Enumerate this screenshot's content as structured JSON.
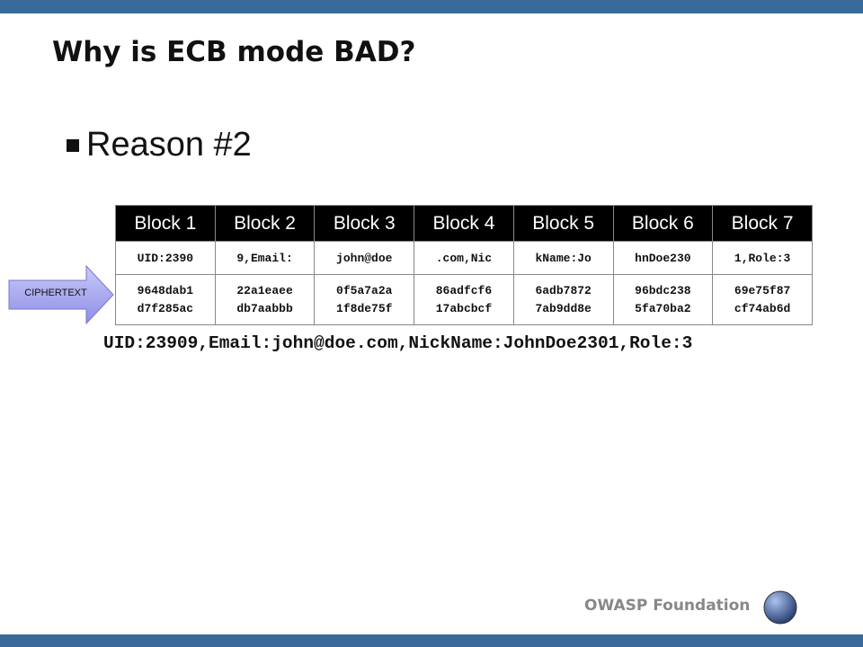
{
  "title": "Why is ECB mode BAD?",
  "bullet": "Reason #2",
  "arrow_label": "CIPHERTEXT",
  "table": {
    "headers": [
      "Block 1",
      "Block 2",
      "Block 3",
      "Block 4",
      "Block 5",
      "Block 6",
      "Block 7"
    ],
    "plaintext": [
      "UID:2390",
      "9,Email:",
      "john@doe",
      ".com,Nic",
      "kName:Jo",
      "hnDoe230",
      "1,Role:3"
    ],
    "ciphertext": [
      [
        "9648dab1",
        "d7f285ac"
      ],
      [
        "22a1eaee",
        "db7aabbb"
      ],
      [
        "0f5a7a2a",
        "1f8de75f"
      ],
      [
        "86adfcf6",
        "17abcbcf"
      ],
      [
        "6adb7872",
        "7ab9dd8e"
      ],
      [
        "96bdc238",
        "5fa70ba2"
      ],
      [
        "69e75f87",
        "cf74ab6d"
      ]
    ]
  },
  "plaintext": "UID:23909,Email:john@doe.com,NickName:JohnDoe2301,Role:3",
  "footer": "OWASP Foundation"
}
